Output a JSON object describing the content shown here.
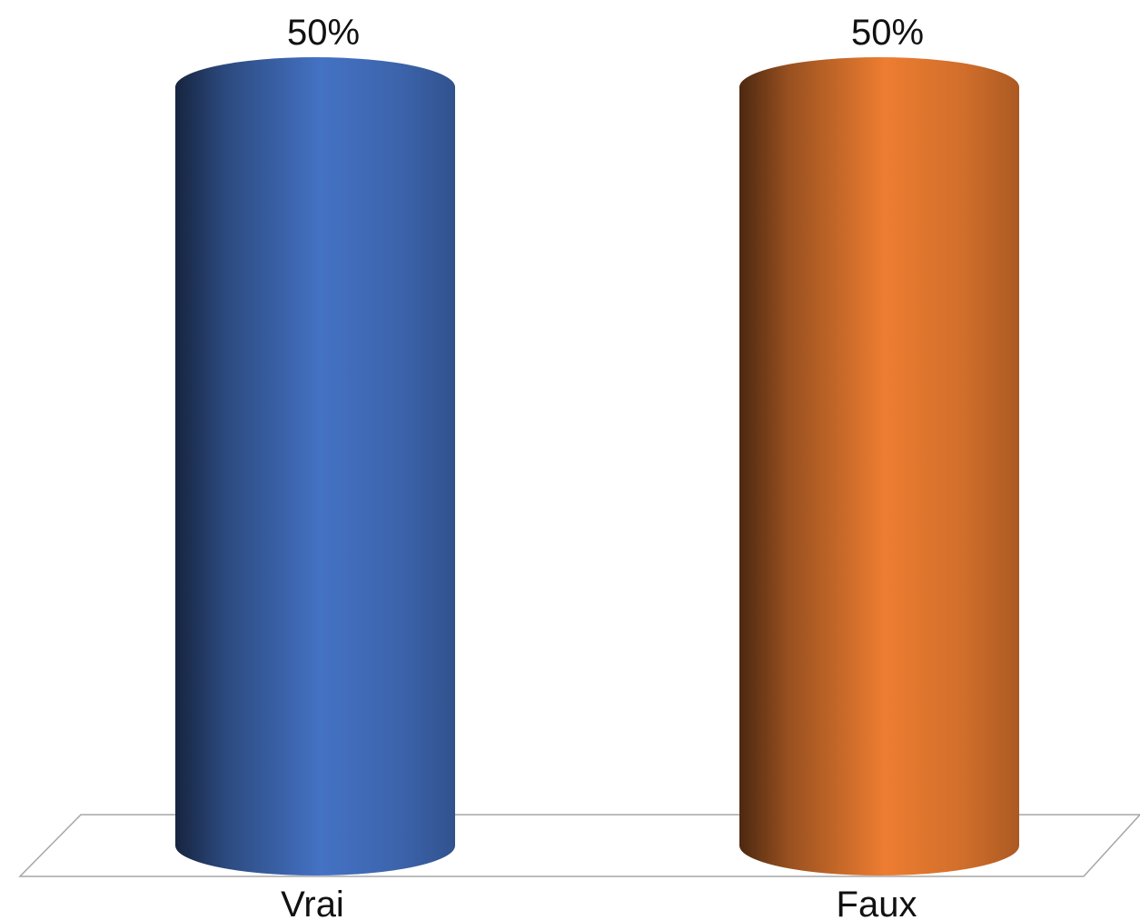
{
  "chart_data": {
    "type": "bar",
    "style": "3d-cylinder",
    "categories": [
      "Vrai",
      "Faux"
    ],
    "values": [
      50,
      50
    ],
    "data_labels": [
      "50%",
      "50%"
    ],
    "colors": [
      "#4472C4",
      "#ED7D31"
    ],
    "ylim": [
      0,
      50
    ],
    "grid": false,
    "legend": "none"
  }
}
